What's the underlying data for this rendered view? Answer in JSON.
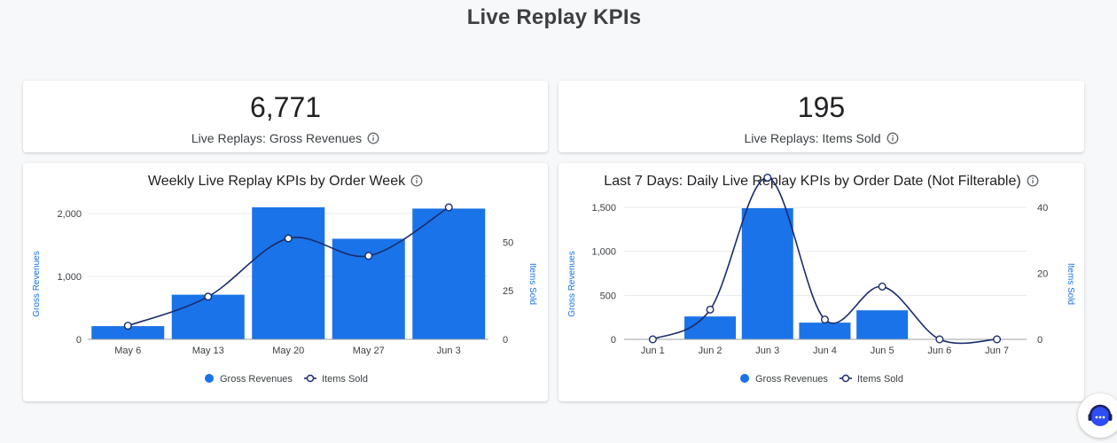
{
  "page": {
    "title": "Live Replay KPIs"
  },
  "kpis": [
    {
      "value": "6,771",
      "label": "Live Replays: Gross Revenues"
    },
    {
      "value": "195",
      "label": "Live Replays: Items Sold"
    }
  ],
  "colors": {
    "bar": "#1a73e8",
    "line": "#1a2b6b",
    "axis_label": "#1a73e8",
    "grid": "#e8eaed",
    "text": "#3c4043"
  },
  "chart_data": [
    {
      "type": "bar",
      "title": "Weekly Live Replay KPIs by Order Week",
      "categories": [
        "May 6",
        "May 13",
        "May 20",
        "May 27",
        "Jun 3"
      ],
      "series": [
        {
          "name": "Gross Revenues",
          "type": "bar",
          "axis": "left",
          "values": [
            210,
            710,
            2100,
            1600,
            2080
          ]
        },
        {
          "name": "Items Sold",
          "type": "line",
          "axis": "right",
          "values": [
            7,
            22,
            52,
            43,
            68
          ]
        }
      ],
      "ylabel": "Gross Revenues",
      "y2label": "Items Sold",
      "ylim": [
        0,
        2100
      ],
      "y2lim": [
        0,
        68
      ],
      "yticks": [
        "0",
        "1,000",
        "2,000"
      ],
      "y2ticks": [
        "0",
        "25",
        "50"
      ],
      "legend": [
        "Gross Revenues",
        "Items Sold"
      ],
      "legend_position": "bottom"
    },
    {
      "type": "bar",
      "title": "Last 7 Days: Daily Live Replay KPIs by Order Date (Not Filterable)",
      "categories": [
        "Jun 1",
        "Jun 2",
        "Jun 3",
        "Jun 4",
        "Jun 5",
        "Jun 6",
        "Jun 7"
      ],
      "series": [
        {
          "name": "Gross Revenues",
          "type": "bar",
          "axis": "left",
          "values": [
            0,
            260,
            1490,
            190,
            330,
            0,
            0
          ]
        },
        {
          "name": "Items Sold",
          "type": "line",
          "axis": "right",
          "values": [
            0,
            9,
            49,
            6,
            16,
            0,
            0
          ]
        }
      ],
      "ylabel": "Gross Revenues",
      "y2label": "Items Sold",
      "ylim": [
        0,
        1500
      ],
      "y2lim": [
        0,
        40
      ],
      "yticks": [
        "0",
        "500",
        "1,000",
        "1,500"
      ],
      "y2ticks": [
        "0",
        "20",
        "40"
      ],
      "legend": [
        "Gross Revenues",
        "Items Sold"
      ],
      "legend_position": "bottom"
    }
  ]
}
